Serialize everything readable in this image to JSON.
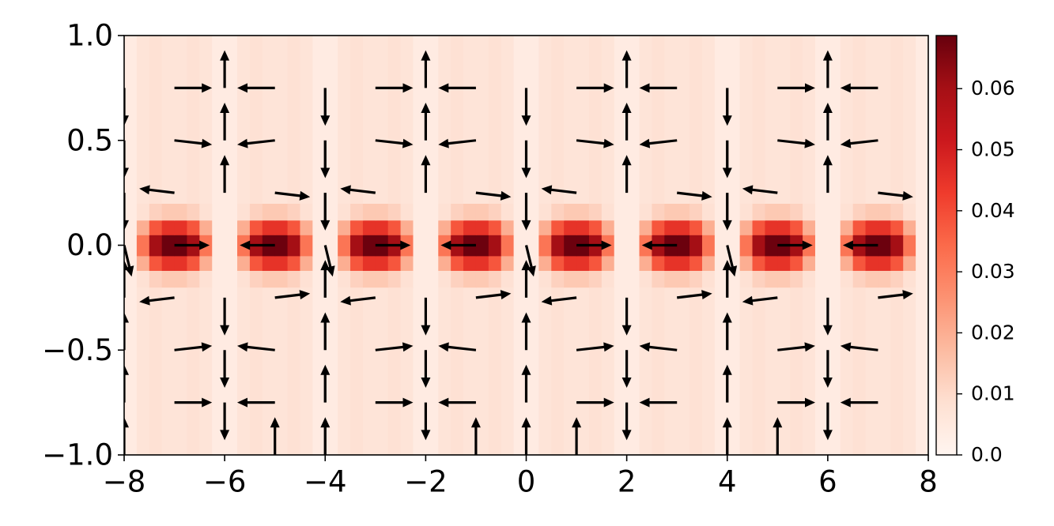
{
  "chart_data": {
    "type": "heatmap_quiver",
    "colormap": "Reds",
    "x_edges": [
      -8,
      -7.75,
      -7.5,
      -7.25,
      -7,
      -6.75,
      -6.5,
      -6.25,
      -6,
      -5.75,
      -5.5,
      -5.25,
      -5,
      -4.75,
      -4.5,
      -4.25,
      -4,
      -3.75,
      -3.5,
      -3.25,
      -3,
      -2.75,
      -2.5,
      -2.25,
      -2,
      -1.75,
      -1.5,
      -1.25,
      -1,
      -0.75,
      -0.5,
      -0.25,
      0,
      0.25,
      0.5,
      0.75,
      1,
      1.25,
      1.5,
      1.75,
      2,
      2.25,
      2.5,
      2.75,
      3,
      3.25,
      3.5,
      3.75,
      4,
      4.25,
      4.5,
      4.75,
      5,
      5.25,
      5.5,
      5.75,
      6,
      6.25,
      6.5,
      6.75,
      7,
      7.25,
      7.5,
      7.75,
      8
    ],
    "y_edges": [
      -1,
      -0.5,
      -0.2,
      -0.12,
      -0.05,
      0.05,
      0.12,
      0.2,
      0.5,
      1
    ],
    "z": [
      [
        0.004,
        0.007,
        0.008,
        0.007,
        0.007,
        0.008,
        0.007,
        0.004,
        0.004,
        0.007,
        0.008,
        0.007,
        0.007,
        0.008,
        0.007,
        0.004,
        0.004,
        0.007,
        0.008,
        0.007,
        0.007,
        0.008,
        0.007,
        0.004,
        0.004,
        0.007,
        0.008,
        0.007,
        0.007,
        0.008,
        0.007,
        0.004,
        0.004,
        0.007,
        0.008,
        0.007,
        0.007,
        0.008,
        0.007,
        0.004,
        0.004,
        0.007,
        0.008,
        0.007,
        0.007,
        0.008,
        0.007,
        0.004,
        0.004,
        0.007,
        0.008,
        0.007,
        0.007,
        0.008,
        0.007,
        0.004,
        0.004,
        0.007,
        0.008,
        0.007,
        0.007,
        0.008,
        0.007,
        0.004
      ],
      [
        0.004,
        0.007,
        0.008,
        0.007,
        0.007,
        0.008,
        0.007,
        0.004,
        0.004,
        0.007,
        0.008,
        0.007,
        0.007,
        0.008,
        0.007,
        0.004,
        0.004,
        0.007,
        0.008,
        0.007,
        0.007,
        0.008,
        0.007,
        0.004,
        0.004,
        0.007,
        0.008,
        0.007,
        0.007,
        0.008,
        0.007,
        0.004,
        0.004,
        0.007,
        0.008,
        0.007,
        0.007,
        0.008,
        0.007,
        0.004,
        0.004,
        0.007,
        0.008,
        0.007,
        0.007,
        0.008,
        0.007,
        0.004,
        0.004,
        0.007,
        0.008,
        0.007,
        0.007,
        0.008,
        0.007,
        0.004,
        0.004,
        0.007,
        0.008,
        0.007,
        0.007,
        0.008,
        0.007,
        0.004
      ],
      [
        0.004,
        0.008,
        0.012,
        0.014,
        0.014,
        0.012,
        0.008,
        0.004,
        0.004,
        0.008,
        0.012,
        0.014,
        0.014,
        0.012,
        0.008,
        0.004,
        0.004,
        0.008,
        0.012,
        0.014,
        0.014,
        0.012,
        0.008,
        0.004,
        0.004,
        0.008,
        0.012,
        0.014,
        0.014,
        0.012,
        0.008,
        0.004,
        0.004,
        0.008,
        0.012,
        0.014,
        0.014,
        0.012,
        0.008,
        0.004,
        0.004,
        0.008,
        0.012,
        0.014,
        0.014,
        0.012,
        0.008,
        0.004,
        0.004,
        0.008,
        0.012,
        0.014,
        0.014,
        0.012,
        0.008,
        0.004,
        0.004,
        0.008,
        0.012,
        0.014,
        0.014,
        0.012,
        0.008,
        0.004
      ],
      [
        0.004,
        0.02,
        0.038,
        0.045,
        0.045,
        0.038,
        0.02,
        0.004,
        0.004,
        0.02,
        0.038,
        0.045,
        0.045,
        0.038,
        0.02,
        0.004,
        0.004,
        0.02,
        0.038,
        0.045,
        0.045,
        0.038,
        0.02,
        0.004,
        0.004,
        0.02,
        0.038,
        0.045,
        0.045,
        0.038,
        0.02,
        0.004,
        0.004,
        0.02,
        0.038,
        0.045,
        0.045,
        0.038,
        0.02,
        0.004,
        0.004,
        0.02,
        0.038,
        0.045,
        0.045,
        0.038,
        0.02,
        0.004,
        0.004,
        0.02,
        0.038,
        0.045,
        0.045,
        0.038,
        0.02,
        0.004,
        0.004,
        0.02,
        0.038,
        0.045,
        0.045,
        0.038,
        0.02,
        0.004
      ],
      [
        0.004,
        0.032,
        0.06,
        0.068,
        0.068,
        0.06,
        0.032,
        0.004,
        0.004,
        0.032,
        0.06,
        0.068,
        0.068,
        0.06,
        0.032,
        0.004,
        0.004,
        0.032,
        0.06,
        0.068,
        0.068,
        0.06,
        0.032,
        0.004,
        0.004,
        0.032,
        0.06,
        0.068,
        0.068,
        0.06,
        0.032,
        0.004,
        0.004,
        0.032,
        0.06,
        0.068,
        0.068,
        0.06,
        0.032,
        0.004,
        0.004,
        0.032,
        0.06,
        0.068,
        0.068,
        0.06,
        0.032,
        0.004,
        0.004,
        0.032,
        0.06,
        0.068,
        0.068,
        0.06,
        0.032,
        0.004,
        0.004,
        0.032,
        0.06,
        0.068,
        0.068,
        0.06,
        0.032,
        0.004
      ],
      [
        0.004,
        0.02,
        0.038,
        0.045,
        0.045,
        0.038,
        0.02,
        0.004,
        0.004,
        0.02,
        0.038,
        0.045,
        0.045,
        0.038,
        0.02,
        0.004,
        0.004,
        0.02,
        0.038,
        0.045,
        0.045,
        0.038,
        0.02,
        0.004,
        0.004,
        0.02,
        0.038,
        0.045,
        0.045,
        0.038,
        0.02,
        0.004,
        0.004,
        0.02,
        0.038,
        0.045,
        0.045,
        0.038,
        0.02,
        0.004,
        0.004,
        0.02,
        0.038,
        0.045,
        0.045,
        0.038,
        0.02,
        0.004,
        0.004,
        0.02,
        0.038,
        0.045,
        0.045,
        0.038,
        0.02,
        0.004,
        0.004,
        0.02,
        0.038,
        0.045,
        0.045,
        0.038,
        0.02,
        0.004
      ],
      [
        0.004,
        0.008,
        0.012,
        0.014,
        0.014,
        0.012,
        0.008,
        0.004,
        0.004,
        0.008,
        0.012,
        0.014,
        0.014,
        0.012,
        0.008,
        0.004,
        0.004,
        0.008,
        0.012,
        0.014,
        0.014,
        0.012,
        0.008,
        0.004,
        0.004,
        0.008,
        0.012,
        0.014,
        0.014,
        0.012,
        0.008,
        0.004,
        0.004,
        0.008,
        0.012,
        0.014,
        0.014,
        0.012,
        0.008,
        0.004,
        0.004,
        0.008,
        0.012,
        0.014,
        0.014,
        0.012,
        0.008,
        0.004,
        0.004,
        0.008,
        0.012,
        0.014,
        0.014,
        0.012,
        0.008,
        0.004,
        0.004,
        0.008,
        0.012,
        0.014,
        0.014,
        0.012,
        0.008,
        0.004
      ],
      [
        0.004,
        0.007,
        0.008,
        0.007,
        0.007,
        0.008,
        0.007,
        0.004,
        0.004,
        0.007,
        0.008,
        0.007,
        0.007,
        0.008,
        0.007,
        0.004,
        0.004,
        0.007,
        0.008,
        0.007,
        0.007,
        0.008,
        0.007,
        0.004,
        0.004,
        0.007,
        0.008,
        0.007,
        0.007,
        0.008,
        0.007,
        0.004,
        0.004,
        0.007,
        0.008,
        0.007,
        0.007,
        0.008,
        0.007,
        0.004,
        0.004,
        0.007,
        0.008,
        0.007,
        0.007,
        0.008,
        0.007,
        0.004,
        0.004,
        0.007,
        0.008,
        0.007,
        0.007,
        0.008,
        0.007,
        0.004,
        0.004,
        0.007,
        0.008,
        0.007,
        0.007,
        0.008,
        0.007,
        0.004
      ],
      [
        0.004,
        0.007,
        0.008,
        0.007,
        0.007,
        0.008,
        0.007,
        0.004,
        0.004,
        0.007,
        0.008,
        0.007,
        0.007,
        0.008,
        0.007,
        0.004,
        0.004,
        0.007,
        0.008,
        0.007,
        0.007,
        0.008,
        0.007,
        0.004,
        0.004,
        0.007,
        0.008,
        0.007,
        0.007,
        0.008,
        0.007,
        0.004,
        0.004,
        0.007,
        0.008,
        0.007,
        0.007,
        0.008,
        0.007,
        0.004,
        0.004,
        0.007,
        0.008,
        0.007,
        0.007,
        0.008,
        0.007,
        0.004,
        0.004,
        0.007,
        0.008,
        0.007,
        0.007,
        0.008,
        0.007,
        0.004,
        0.004,
        0.007,
        0.008,
        0.007,
        0.007,
        0.008,
        0.007,
        0.004
      ]
    ],
    "clim": [
      0,
      0.0687
    ],
    "cticks": [
      {
        "value": 0,
        "label": "0.0"
      },
      0.01,
      0.02,
      0.03,
      0.04,
      0.05,
      0.06
    ],
    "quiver": {
      "color": "#000000",
      "x": [
        -8,
        -7,
        -6,
        -5,
        -4,
        -3,
        -2,
        -1,
        0,
        1,
        2,
        3,
        4,
        5,
        6,
        7,
        -8,
        -7,
        -6,
        -5,
        -4,
        -3,
        -2,
        -1,
        0,
        1,
        2,
        3,
        4,
        5,
        6,
        7,
        -8,
        -7,
        -6,
        -5,
        -4,
        -3,
        -2,
        -1,
        0,
        1,
        2,
        3,
        4,
        5,
        6,
        7,
        -8,
        -7,
        -5,
        -4,
        -3,
        -1,
        0,
        1,
        3,
        4,
        5,
        7,
        -8,
        -7,
        -6,
        -5,
        -4,
        -3,
        -2,
        -1,
        0,
        1,
        2,
        3,
        4,
        5,
        6,
        7,
        -8,
        -7,
        -6,
        -5,
        -4,
        -3,
        -2,
        -1,
        0,
        1,
        2,
        3,
        4,
        5,
        6,
        7,
        -8,
        -7,
        -6,
        -5,
        -4,
        -3,
        -2,
        -1,
        0,
        1,
        2,
        3,
        4,
        5,
        6,
        7,
        -8,
        -5,
        -4,
        -1,
        0,
        1,
        4,
        5
      ],
      "y": [
        0.75,
        0.75,
        0.75,
        0.75,
        0.75,
        0.75,
        0.75,
        0.75,
        0.75,
        0.75,
        0.75,
        0.75,
        0.75,
        0.75,
        0.75,
        0.75,
        0.5,
        0.5,
        0.5,
        0.5,
        0.5,
        0.5,
        0.5,
        0.5,
        0.5,
        0.5,
        0.5,
        0.5,
        0.5,
        0.5,
        0.5,
        0.5,
        0.25,
        0.25,
        0.25,
        0.25,
        0.25,
        0.25,
        0.25,
        0.25,
        0.25,
        0.25,
        0.25,
        0.25,
        0.25,
        0.25,
        0.25,
        0.25,
        0,
        0,
        0,
        0,
        0,
        0,
        0,
        0,
        0,
        0,
        0,
        0,
        -0.25,
        -0.25,
        -0.25,
        -0.25,
        -0.25,
        -0.25,
        -0.25,
        -0.25,
        -0.25,
        -0.25,
        -0.25,
        -0.25,
        -0.25,
        -0.25,
        -0.25,
        -0.25,
        -0.5,
        -0.5,
        -0.5,
        -0.5,
        -0.5,
        -0.5,
        -0.5,
        -0.5,
        -0.5,
        -0.5,
        -0.5,
        -0.5,
        -0.5,
        -0.5,
        -0.5,
        -0.5,
        -0.75,
        -0.75,
        -0.75,
        -0.75,
        -0.75,
        -0.75,
        -0.75,
        -0.75,
        -0.75,
        -0.75,
        -0.75,
        -0.75,
        -0.75,
        -0.75,
        -0.75,
        -0.75,
        -1,
        -1,
        -1,
        -1,
        -1,
        -1,
        -1,
        -1
      ],
      "u": [
        0,
        0.75,
        0,
        -0.75,
        0,
        0.75,
        0,
        -0.75,
        0,
        0.75,
        0,
        -0.75,
        0,
        0.75,
        0,
        -0.75,
        0,
        0.75,
        0,
        -0.75,
        0,
        0.75,
        0,
        -0.75,
        0,
        0.75,
        0,
        -0.75,
        0,
        0.75,
        0,
        -0.75,
        0,
        -0.7,
        0,
        0.7,
        0,
        -0.7,
        0,
        0.7,
        0,
        -0.7,
        0,
        0.7,
        0,
        -0.7,
        0,
        0.7,
        0.15,
        0.7,
        -0.7,
        0.15,
        0.7,
        -0.7,
        0.15,
        0.7,
        -0.7,
        0.15,
        0.7,
        -0.7,
        0,
        -0.7,
        0,
        0.7,
        0,
        -0.7,
        0,
        0.7,
        0,
        -0.7,
        0,
        0.7,
        0,
        -0.7,
        0,
        0.7,
        0,
        0.75,
        0,
        -0.75,
        0,
        0.75,
        0,
        -0.75,
        0,
        0.75,
        0,
        -0.75,
        0,
        0.75,
        0,
        -0.75,
        0,
        0.75,
        0,
        -0.75,
        0,
        0.75,
        0,
        -0.75,
        0,
        0.75,
        0,
        -0.75,
        0,
        0.75,
        0,
        -0.75,
        0,
        0,
        0,
        0,
        0,
        0,
        0,
        0
      ],
      "v": [
        -0.18,
        0,
        0.18,
        0,
        -0.18,
        0,
        0.18,
        0,
        -0.18,
        0,
        0.18,
        0,
        -0.18,
        0,
        0.18,
        0,
        -0.18,
        -0.02,
        0.18,
        -0.02,
        -0.18,
        -0.02,
        0.18,
        -0.02,
        -0.18,
        -0.02,
        0.18,
        -0.02,
        -0.18,
        -0.02,
        0.18,
        -0.02,
        -0.18,
        0.02,
        0.18,
        -0.02,
        -0.18,
        0.02,
        0.18,
        -0.02,
        -0.18,
        0.02,
        0.18,
        -0.02,
        -0.18,
        0.02,
        0.18,
        -0.02,
        -0.15,
        0,
        0,
        -0.15,
        0,
        0,
        -0.15,
        0,
        0,
        -0.15,
        0,
        0,
        0.18,
        -0.02,
        -0.18,
        0.02,
        0.18,
        -0.02,
        -0.18,
        0.02,
        0.18,
        -0.02,
        -0.18,
        0.02,
        0.18,
        -0.02,
        -0.18,
        0.02,
        0.18,
        0.02,
        -0.18,
        0.02,
        0.18,
        0.02,
        -0.18,
        0.02,
        0.18,
        0.02,
        -0.18,
        0.02,
        0.18,
        0.02,
        -0.18,
        0.02,
        0.18,
        0,
        -0.18,
        0,
        0.18,
        0,
        -0.18,
        0,
        0.18,
        0,
        -0.18,
        0,
        0.18,
        0,
        -0.18,
        0,
        0.18,
        0.18,
        0.18,
        0.18,
        0.18,
        0.18,
        0.18,
        0.18
      ]
    },
    "xlim": [
      -8,
      8
    ],
    "ylim": [
      -1,
      1
    ],
    "xticks": [
      {
        "value": -8,
        "label": "−8"
      },
      {
        "value": -6,
        "label": "−6"
      },
      {
        "value": -4,
        "label": "−4"
      },
      {
        "value": -2,
        "label": "−2"
      },
      0,
      2,
      4,
      6,
      8
    ],
    "yticks": [
      {
        "value": -1,
        "label": "−1.0"
      },
      {
        "value": -0.5,
        "label": "−0.5"
      },
      {
        "value": 0,
        "label": "0.0"
      },
      0.5,
      {
        "value": 1,
        "label": "1.0"
      }
    ]
  }
}
